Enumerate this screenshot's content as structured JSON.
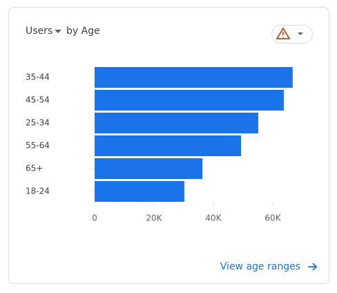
{
  "chart_data": {
    "type": "hbar",
    "metric": "Users",
    "title": "by Age",
    "categories": [
      "35-44",
      "45-54",
      "25-34",
      "55-64",
      "65+",
      "18-24"
    ],
    "values": [
      66700,
      63700,
      55100,
      49300,
      36300,
      30200
    ],
    "color": "#1a73e8",
    "xlim": [
      0,
      70000
    ],
    "xticks": [
      0,
      {
        "value": 20000,
        "label": "20K"
      },
      {
        "value": 40000,
        "label": "40K"
      },
      {
        "value": 60000,
        "label": "60K"
      }
    ]
  },
  "link": "View age ranges"
}
